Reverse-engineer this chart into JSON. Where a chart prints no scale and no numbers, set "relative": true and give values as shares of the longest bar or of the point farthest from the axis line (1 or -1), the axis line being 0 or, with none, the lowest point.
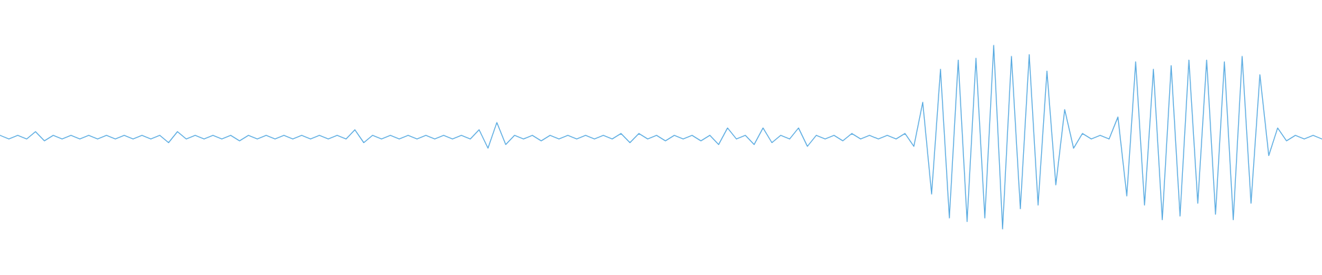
{
  "chart_data": {
    "type": "line",
    "relative": true,
    "categories": [
      null,
      null,
      null,
      null,
      null,
      null,
      null,
      null,
      null,
      null,
      null,
      null,
      null,
      null,
      null,
      null,
      null,
      null,
      null,
      null,
      null,
      null,
      null,
      null,
      null,
      null,
      null,
      null,
      null,
      null,
      null,
      null,
      null,
      null,
      null,
      null,
      null,
      null,
      null,
      null,
      null,
      null,
      null,
      null,
      null,
      null,
      null,
      null,
      null,
      null,
      null,
      null,
      null,
      null,
      null,
      null,
      null,
      null,
      null,
      null,
      null,
      null,
      null,
      null,
      null,
      null,
      null,
      null,
      null,
      null,
      null,
      null,
      null,
      null,
      null,
      null,
      null,
      null,
      null,
      null,
      null,
      null,
      null,
      null,
      null,
      null,
      null,
      null,
      null,
      null,
      null,
      null,
      null,
      null,
      null,
      null,
      null,
      null,
      null,
      null,
      null,
      null,
      null,
      null,
      null,
      null,
      null,
      null,
      null,
      null,
      null,
      null,
      null,
      null,
      null,
      null,
      null,
      null,
      null,
      null,
      null,
      null,
      null,
      null,
      null,
      null,
      null,
      null,
      null,
      null,
      null,
      null,
      null,
      null,
      null,
      null,
      null,
      null,
      null,
      null,
      null,
      null,
      null,
      null,
      null,
      null,
      null,
      null,
      null,
      null
    ],
    "series": [
      {
        "color": "#5dade2",
        "values": [
          0.51,
          0.49,
          0.51,
          0.49,
          0.53,
          0.48,
          0.51,
          0.49,
          0.51,
          0.49,
          0.51,
          0.49,
          0.51,
          0.49,
          0.51,
          0.49,
          0.51,
          0.49,
          0.51,
          0.47,
          0.53,
          0.49,
          0.51,
          0.49,
          0.51,
          0.49,
          0.51,
          0.48,
          0.51,
          0.49,
          0.51,
          0.49,
          0.51,
          0.49,
          0.51,
          0.49,
          0.51,
          0.49,
          0.51,
          0.49,
          0.54,
          0.47,
          0.51,
          0.49,
          0.51,
          0.49,
          0.51,
          0.49,
          0.51,
          0.49,
          0.51,
          0.49,
          0.51,
          0.49,
          0.54,
          0.44,
          0.58,
          0.46,
          0.51,
          0.49,
          0.51,
          0.48,
          0.51,
          0.49,
          0.51,
          0.49,
          0.51,
          0.49,
          0.51,
          0.49,
          0.52,
          0.47,
          0.52,
          0.49,
          0.51,
          0.48,
          0.51,
          0.49,
          0.51,
          0.48,
          0.51,
          0.46,
          0.55,
          0.49,
          0.51,
          0.46,
          0.55,
          0.47,
          0.51,
          0.49,
          0.55,
          0.45,
          0.51,
          0.49,
          0.51,
          0.48,
          0.52,
          0.49,
          0.51,
          0.49,
          0.51,
          0.49,
          0.52,
          0.45,
          0.69,
          0.19,
          0.87,
          0.06,
          0.92,
          0.04,
          0.93,
          0.06,
          1.0,
          0.0,
          0.94,
          0.11,
          0.95,
          0.13,
          0.86,
          0.24,
          0.65,
          0.44,
          0.52,
          0.49,
          0.51,
          0.49,
          0.61,
          0.18,
          0.91,
          0.13,
          0.87,
          0.05,
          0.89,
          0.07,
          0.92,
          0.14,
          0.92,
          0.08,
          0.91,
          0.05,
          0.94,
          0.14,
          0.84,
          0.4,
          0.55,
          0.48,
          0.51,
          0.49,
          0.51,
          0.49
        ]
      }
    ]
  }
}
